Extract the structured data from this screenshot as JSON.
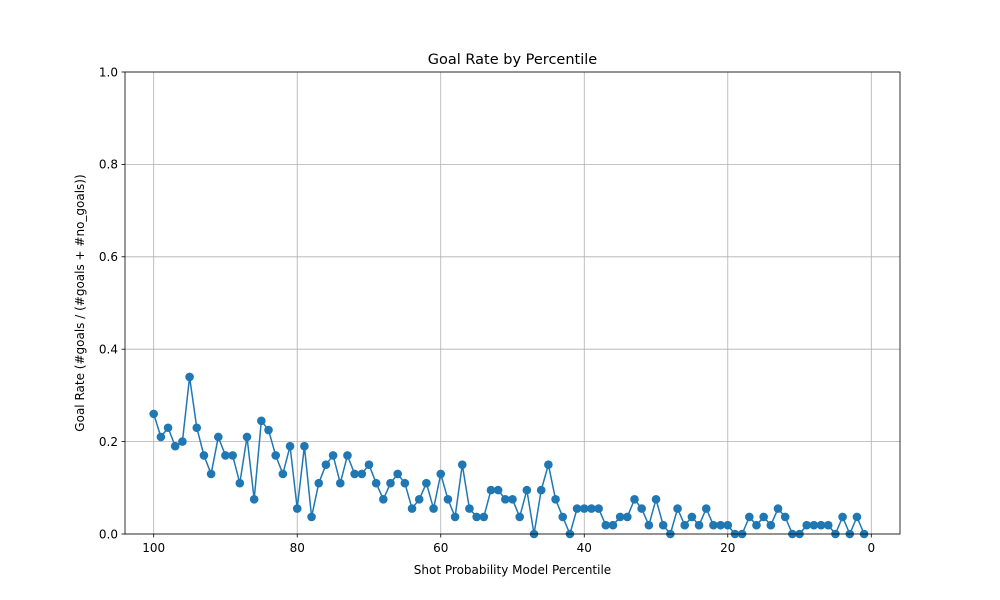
{
  "chart_data": {
    "type": "line",
    "title": "Goal Rate by Percentile",
    "xlabel": "Shot Probability Model Percentile",
    "ylabel": "Goal Rate (#goals / (#goals + #no_goals))",
    "xlim": [
      104,
      -4
    ],
    "ylim": [
      0,
      1
    ],
    "x_inverted": true,
    "grid": true,
    "marker": "circle",
    "line_color": "#1f77b4",
    "x_ticks": [
      100,
      80,
      60,
      40,
      20,
      0
    ],
    "y_ticks": [
      0.0,
      0.2,
      0.4,
      0.6,
      0.8,
      1.0
    ],
    "x_tick_labels": [
      "100",
      "80",
      "60",
      "40",
      "20",
      "0"
    ],
    "y_tick_labels": [
      "0.0",
      "0.2",
      "0.4",
      "0.6",
      "0.8",
      "1.0"
    ],
    "x": [
      100,
      99,
      98,
      97,
      96,
      95,
      94,
      93,
      92,
      91,
      90,
      89,
      88,
      87,
      86,
      85,
      84,
      83,
      82,
      81,
      80,
      79,
      78,
      77,
      76,
      75,
      74,
      73,
      72,
      71,
      70,
      69,
      68,
      67,
      66,
      65,
      64,
      63,
      62,
      61,
      60,
      59,
      58,
      57,
      56,
      55,
      54,
      53,
      52,
      51,
      50,
      49,
      48,
      47,
      46,
      45,
      44,
      43,
      42,
      41,
      40,
      39,
      38,
      37,
      36,
      35,
      34,
      33,
      32,
      31,
      30,
      29,
      28,
      27,
      26,
      25,
      24,
      23,
      22,
      21,
      20,
      19,
      18,
      17,
      16,
      15,
      14,
      13,
      12,
      11,
      10,
      9,
      8,
      7,
      6,
      5,
      4,
      3,
      2,
      1
    ],
    "y": [
      0.26,
      0.21,
      0.23,
      0.19,
      0.2,
      0.34,
      0.23,
      0.17,
      0.13,
      0.21,
      0.17,
      0.17,
      0.11,
      0.21,
      0.075,
      0.245,
      0.225,
      0.17,
      0.13,
      0.19,
      0.055,
      0.19,
      0.037,
      0.11,
      0.15,
      0.17,
      0.11,
      0.17,
      0.13,
      0.13,
      0.15,
      0.11,
      0.075,
      0.11,
      0.13,
      0.11,
      0.055,
      0.075,
      0.11,
      0.055,
      0.13,
      0.075,
      0.037,
      0.15,
      0.055,
      0.037,
      0.037,
      0.095,
      0.095,
      0.075,
      0.075,
      0.037,
      0.095,
      0.0,
      0.095,
      0.15,
      0.075,
      0.037,
      0.0,
      0.055,
      0.055,
      0.055,
      0.055,
      0.019,
      0.019,
      0.037,
      0.037,
      0.075,
      0.055,
      0.019,
      0.075,
      0.019,
      0.0,
      0.055,
      0.019,
      0.037,
      0.019,
      0.055,
      0.019,
      0.019,
      0.019,
      0.0,
      0.0,
      0.037,
      0.019,
      0.037,
      0.019,
      0.055,
      0.037,
      0.0,
      0.0,
      0.019,
      0.019,
      0.019,
      0.019,
      0.0,
      0.037,
      0.0,
      0.037,
      0.0
    ]
  }
}
